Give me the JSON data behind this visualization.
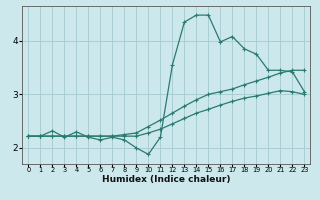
{
  "xlabel": "Humidex (Indice chaleur)",
  "background_color": "#cce8ec",
  "grid_color": "#aacdd4",
  "line_color": "#2a7a70",
  "xlim": [
    -0.5,
    23.5
  ],
  "ylim": [
    1.7,
    4.65
  ],
  "yticks": [
    2,
    3,
    4
  ],
  "xticks": [
    0,
    1,
    2,
    3,
    4,
    5,
    6,
    7,
    8,
    9,
    10,
    11,
    12,
    13,
    14,
    15,
    16,
    17,
    18,
    19,
    20,
    21,
    22,
    23
  ],
  "line1_x": [
    0,
    1,
    2,
    3,
    4,
    5,
    6,
    7,
    8,
    9,
    10,
    11,
    12,
    13,
    14,
    15,
    16,
    17,
    18,
    19,
    20,
    21,
    22,
    23
  ],
  "line1_y": [
    2.22,
    2.22,
    2.32,
    2.2,
    2.3,
    2.2,
    2.15,
    2.2,
    2.15,
    2.0,
    1.88,
    2.2,
    3.55,
    4.35,
    4.48,
    4.48,
    3.98,
    4.08,
    3.85,
    3.75,
    3.45,
    3.45,
    3.42,
    3.05
  ],
  "line2_x": [
    0,
    1,
    2,
    3,
    4,
    5,
    6,
    7,
    8,
    9,
    10,
    11,
    12,
    13,
    14,
    15,
    16,
    17,
    18,
    19,
    20,
    21,
    22,
    23
  ],
  "line2_y": [
    2.22,
    2.22,
    2.22,
    2.22,
    2.22,
    2.22,
    2.22,
    2.22,
    2.25,
    2.28,
    2.4,
    2.52,
    2.65,
    2.78,
    2.9,
    3.0,
    3.05,
    3.1,
    3.18,
    3.25,
    3.32,
    3.4,
    3.45,
    3.45
  ],
  "line3_x": [
    0,
    1,
    2,
    3,
    4,
    5,
    6,
    7,
    8,
    9,
    10,
    11,
    12,
    13,
    14,
    15,
    16,
    17,
    18,
    19,
    20,
    21,
    22,
    23
  ],
  "line3_y": [
    2.22,
    2.22,
    2.22,
    2.22,
    2.22,
    2.22,
    2.22,
    2.22,
    2.22,
    2.22,
    2.28,
    2.35,
    2.45,
    2.55,
    2.65,
    2.72,
    2.8,
    2.87,
    2.93,
    2.97,
    3.02,
    3.07,
    3.05,
    3.0
  ]
}
